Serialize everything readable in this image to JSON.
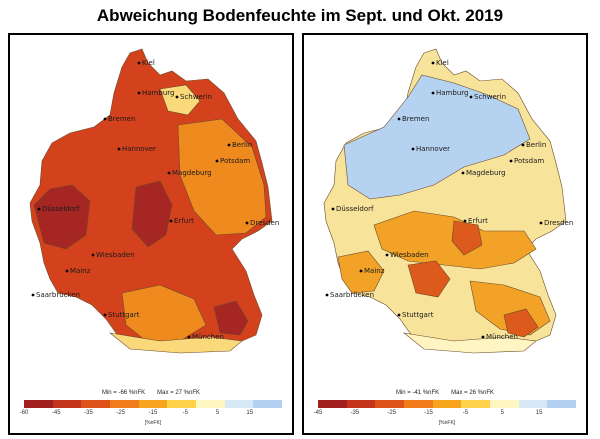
{
  "title": "Abweichung Bodenfeuchte im Sept. und Okt. 2019",
  "maps": [
    {
      "id": "sept",
      "min_label": "Min = -66 %nFK",
      "max_label": "Max = 27 %nFK",
      "ticks": [
        "-60",
        "-45",
        "-35",
        "-25",
        "-15",
        "-5",
        "5",
        "15"
      ],
      "unit": "[%nFK]",
      "scale_colors": [
        "#a11f1f",
        "#c2341b",
        "#dd531a",
        "#ef7b1a",
        "#f7a41e",
        "#ffd24a",
        "#fff7c2",
        "#d6e8f6",
        "#b2d0ef"
      ],
      "fill_primary": "#d4421d",
      "fill_secondary": "#ef8a1f",
      "fill_dark": "#a52623",
      "fill_light": "#fad97a",
      "fill_blue": "#cfe3f5"
    },
    {
      "id": "okt",
      "min_label": "Min = -41 %nFK",
      "max_label": "Max = 26 %nFK",
      "ticks": [
        "-45",
        "-35",
        "-25",
        "-15",
        "-5",
        "5",
        "15"
      ],
      "unit": "[%nFK]",
      "scale_colors": [
        "#a11f1f",
        "#c2341b",
        "#dd531a",
        "#ef7b1a",
        "#f7a41e",
        "#ffd24a",
        "#fff7c2",
        "#d6e8f6",
        "#b2d0ef"
      ],
      "fill_primary": "#f8e39a",
      "fill_secondary": "#f2a226",
      "fill_dark": "#dc5a1b",
      "fill_light": "#fff5c2",
      "fill_blue": "#b5d2f0"
    }
  ],
  "cities": [
    {
      "name": "Kiel"
    },
    {
      "name": "Hamburg"
    },
    {
      "name": "Schwerin"
    },
    {
      "name": "Bremen"
    },
    {
      "name": "Berlin"
    },
    {
      "name": "Hannover"
    },
    {
      "name": "Potsdam"
    },
    {
      "name": "Magdeburg"
    },
    {
      "name": "Düsseldorf"
    },
    {
      "name": "Erfurt"
    },
    {
      "name": "Dresden"
    },
    {
      "name": "Wiesbaden"
    },
    {
      "name": "Mainz"
    },
    {
      "name": "Saarbrücken"
    },
    {
      "name": "Stuttgart"
    },
    {
      "name": "München"
    }
  ]
}
